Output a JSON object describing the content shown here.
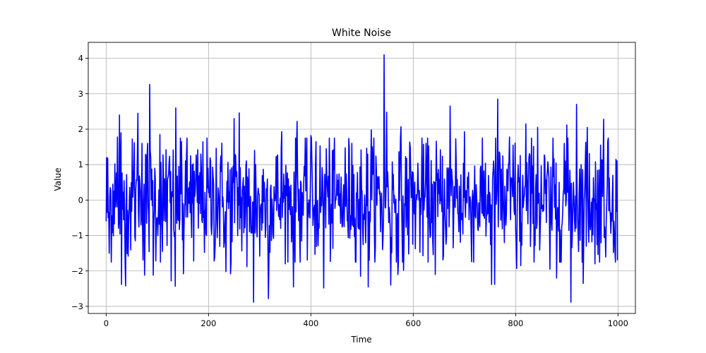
{
  "chart_data": {
    "type": "line",
    "title": "White Noise",
    "xlabel": "Time",
    "ylabel": "Value",
    "xlim": [
      -35,
      1034
    ],
    "ylim": [
      -3.2,
      4.45
    ],
    "xticks": [
      0,
      200,
      400,
      600,
      800,
      1000
    ],
    "yticks": [
      -3,
      -2,
      -1,
      0,
      1,
      2,
      3,
      4
    ],
    "xtick_labels": [
      "0",
      "200",
      "400",
      "600",
      "800",
      "1000"
    ],
    "ytick_labels": [
      "−3",
      "−2",
      "−1",
      "0",
      "1",
      "2",
      "3",
      "4"
    ],
    "grid": true,
    "legend": "none",
    "n_points": 1000,
    "series": [
      {
        "color": "#0000ff",
        "anchor_points": [
          {
            "x": 0,
            "y": -0.6
          },
          {
            "x": 1,
            "y": 1.2
          },
          {
            "x": 4,
            "y": -0.5
          },
          {
            "x": 6,
            "y": -1.5
          },
          {
            "x": 13,
            "y": 0.45
          },
          {
            "x": 17,
            "y": 1.02
          },
          {
            "x": 22,
            "y": 1.78
          },
          {
            "x": 24,
            "y": -0.8
          },
          {
            "x": 26,
            "y": 2.4
          },
          {
            "x": 29,
            "y": 1.9
          },
          {
            "x": 30,
            "y": -2.38
          },
          {
            "x": 38,
            "y": -2.42
          },
          {
            "x": 40,
            "y": 0.72
          },
          {
            "x": 55,
            "y": 1.62
          },
          {
            "x": 62,
            "y": 2.45
          },
          {
            "x": 70,
            "y": 1.6
          },
          {
            "x": 75,
            "y": -2.12
          },
          {
            "x": 81,
            "y": 1.6
          },
          {
            "x": 85,
            "y": 3.26
          },
          {
            "x": 92,
            "y": -2.12
          },
          {
            "x": 105,
            "y": 1.85
          },
          {
            "x": 110,
            "y": -1.45
          },
          {
            "x": 117,
            "y": 1.42
          },
          {
            "x": 127,
            "y": -2.28
          },
          {
            "x": 135,
            "y": -2.43
          },
          {
            "x": 136,
            "y": 2.6
          },
          {
            "x": 147,
            "y": 1.65
          },
          {
            "x": 151,
            "y": -2.08
          },
          {
            "x": 165,
            "y": 1.25
          },
          {
            "x": 171,
            "y": -1.72
          },
          {
            "x": 185,
            "y": 1.3
          },
          {
            "x": 211,
            "y": -1.72
          },
          {
            "x": 215,
            "y": 1.46
          },
          {
            "x": 234,
            "y": -2.02
          },
          {
            "x": 243,
            "y": -2.08
          },
          {
            "x": 250,
            "y": 2.3
          },
          {
            "x": 260,
            "y": 2.46
          },
          {
            "x": 275,
            "y": -1.88
          },
          {
            "x": 288,
            "y": -2.88
          },
          {
            "x": 290,
            "y": 1.4
          },
          {
            "x": 300,
            "y": -1.58
          },
          {
            "x": 317,
            "y": -2.78
          },
          {
            "x": 332,
            "y": 1.22
          },
          {
            "x": 343,
            "y": 1.93
          },
          {
            "x": 350,
            "y": -1.8
          },
          {
            "x": 366,
            "y": -2.45
          },
          {
            "x": 373,
            "y": 2.22
          },
          {
            "x": 400,
            "y": 1.82
          },
          {
            "x": 410,
            "y": 1.65
          },
          {
            "x": 425,
            "y": -2.48
          },
          {
            "x": 430,
            "y": 1.45
          },
          {
            "x": 480,
            "y": 1.6
          },
          {
            "x": 497,
            "y": -2.15
          },
          {
            "x": 512,
            "y": -2.45
          },
          {
            "x": 518,
            "y": 1.98
          },
          {
            "x": 540,
            "y": -1.4
          },
          {
            "x": 543,
            "y": 4.1
          },
          {
            "x": 548,
            "y": 2.48
          },
          {
            "x": 556,
            "y": -2.4
          },
          {
            "x": 570,
            "y": -2.1
          },
          {
            "x": 576,
            "y": 2.07
          },
          {
            "x": 581,
            "y": -1.98
          },
          {
            "x": 594,
            "y": 1.5
          },
          {
            "x": 625,
            "y": 1.6
          },
          {
            "x": 643,
            "y": -2.1
          },
          {
            "x": 653,
            "y": 1.42
          },
          {
            "x": 672,
            "y": 2.65
          },
          {
            "x": 683,
            "y": 1.73
          },
          {
            "x": 700,
            "y": 1.93
          },
          {
            "x": 753,
            "y": -2.38
          },
          {
            "x": 759,
            "y": -2.38
          },
          {
            "x": 765,
            "y": 2.85
          },
          {
            "x": 778,
            "y": -1.2
          },
          {
            "x": 788,
            "y": 1.78
          },
          {
            "x": 795,
            "y": 1.55
          },
          {
            "x": 802,
            "y": -1.93
          },
          {
            "x": 810,
            "y": -1.85
          },
          {
            "x": 820,
            "y": 2.15
          },
          {
            "x": 843,
            "y": 2.05
          },
          {
            "x": 867,
            "y": -1.95
          },
          {
            "x": 880,
            "y": -2.2
          },
          {
            "x": 895,
            "y": 1.6
          },
          {
            "x": 900,
            "y": 2.12
          },
          {
            "x": 908,
            "y": -2.88
          },
          {
            "x": 919,
            "y": 2.7
          },
          {
            "x": 932,
            "y": -2.35
          },
          {
            "x": 940,
            "y": 2.05
          },
          {
            "x": 955,
            "y": -1.8
          },
          {
            "x": 966,
            "y": 1.55
          },
          {
            "x": 972,
            "y": 2.28
          },
          {
            "x": 980,
            "y": 1.65
          },
          {
            "x": 990,
            "y": 0.7
          },
          {
            "x": 996,
            "y": 1.15
          },
          {
            "x": 999,
            "y": -1.7
          }
        ]
      }
    ]
  }
}
